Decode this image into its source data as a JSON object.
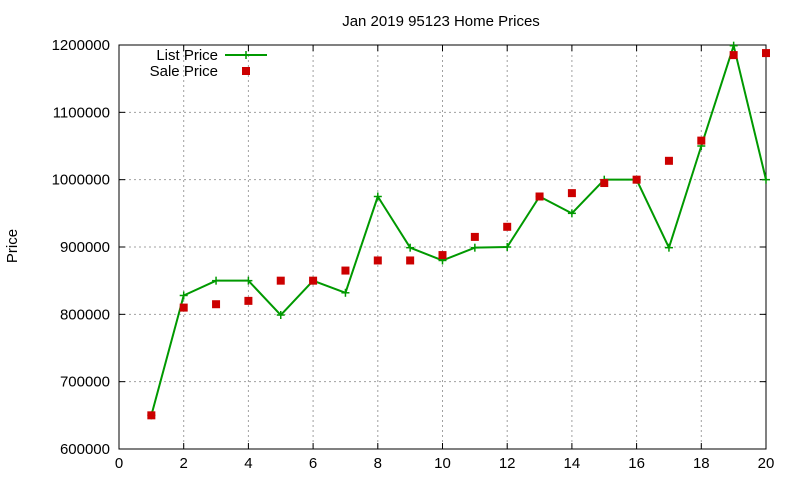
{
  "chart_data": {
    "type": "line",
    "title": "Jan 2019 95123 Home Prices",
    "xlabel": "",
    "ylabel": "Price",
    "xlim": [
      0,
      20
    ],
    "ylim": [
      600000,
      1200000
    ],
    "xticks": [
      0,
      2,
      4,
      6,
      8,
      10,
      12,
      14,
      16,
      18,
      20
    ],
    "yticks": [
      600000,
      700000,
      800000,
      900000,
      1000000,
      1100000,
      1200000
    ],
    "grid": true,
    "legend_position": "top-left",
    "series": [
      {
        "name": "List Price",
        "style": "line+cross",
        "color": "#009900",
        "x": [
          1,
          2,
          3,
          4,
          5,
          6,
          7,
          8,
          9,
          10,
          11,
          12,
          13,
          14,
          15,
          16,
          17,
          18,
          19,
          20
        ],
        "y": [
          650000,
          828000,
          850000,
          850000,
          799000,
          850000,
          832000,
          975000,
          899000,
          880000,
          899000,
          900000,
          975000,
          950000,
          1000000,
          1000000,
          899000,
          1050000,
          1199000,
          1000000
        ]
      },
      {
        "name": "Sale Price",
        "style": "points-square",
        "color": "#cc0000",
        "x": [
          1,
          2,
          3,
          4,
          5,
          6,
          7,
          8,
          9,
          10,
          11,
          12,
          13,
          14,
          15,
          16,
          17,
          18,
          19,
          20
        ],
        "y": [
          650000,
          810000,
          815000,
          820000,
          850000,
          850000,
          865000,
          880000,
          880000,
          888000,
          915000,
          930000,
          975000,
          980000,
          995000,
          1000000,
          1028000,
          1058000,
          1185000,
          1188000
        ]
      }
    ]
  }
}
